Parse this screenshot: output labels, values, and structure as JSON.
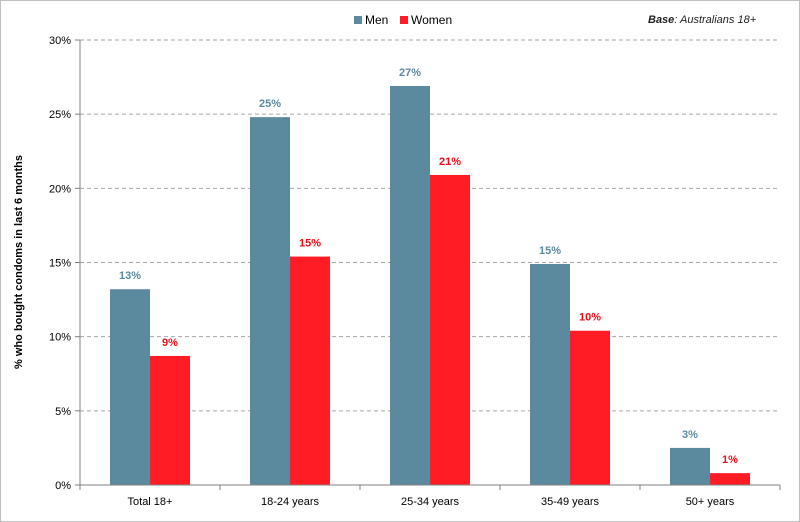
{
  "note": {
    "label": "Base",
    "text": ": Australians 18+"
  },
  "chart_data": {
    "type": "bar",
    "categories": [
      "Total 18+",
      "18-24 years",
      "25-34 years",
      "35-49 years",
      "50+ years"
    ],
    "series": [
      {
        "name": "Men",
        "color": "#5b8a9e",
        "values": [
          13.2,
          24.8,
          26.9,
          14.9,
          2.5
        ],
        "labels": [
          "13%",
          "25%",
          "27%",
          "15%",
          "3%"
        ],
        "label_color": "#5b8a9e"
      },
      {
        "name": "Women",
        "color": "#ff1c24",
        "values": [
          8.7,
          15.4,
          20.9,
          10.4,
          0.8
        ],
        "labels": [
          "9%",
          "15%",
          "21%",
          "10%",
          "1%"
        ],
        "label_color": "#e8101a"
      }
    ],
    "ylabel": "% who bought condoms in last 6 months",
    "xlabel": "",
    "ylim": [
      0,
      30
    ],
    "yticks": [
      0,
      5,
      10,
      15,
      20,
      25,
      30
    ],
    "ytick_labels": [
      "0%",
      "5%",
      "10%",
      "15%",
      "20%",
      "25%",
      "30%"
    ],
    "grid": true,
    "legend_position": "top-center"
  }
}
